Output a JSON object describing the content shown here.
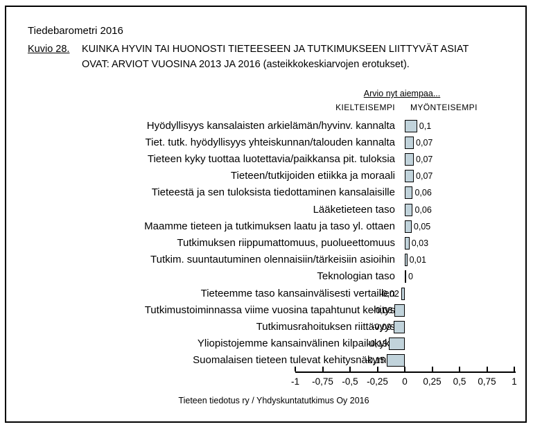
{
  "page": {
    "report_title": "Tiedebarometri 2016",
    "figure_label": "Kuvio 28.",
    "figure_title_line1": "KUINKA HYVIN TAI HUONOSTI TIETEESEEN JA TUTKIMUKSEEN LIITTYVÄT ASIAT",
    "figure_title_line2": "OVAT: ARVIOT VUOSINA 2013 JA 2016 (asteikkokeskiarvojen erotukset).",
    "footer": "Tieteen tiedotus ry / Yhdyskuntatutkimus Oy 2016"
  },
  "chart_data": {
    "type": "bar",
    "orientation": "horizontal",
    "header_note": "Arvio nyt aiempaa...",
    "column_label_negative": "KIELTEISEMPI",
    "column_label_positive": "MYÖNTEISEMPI",
    "categories": [
      "Hyödyllisyys kansalaisten arkielämän/hyvinv. kannalta",
      "Tiet. tutk. hyödyllisyys yhteiskunnan/talouden kannalta",
      "Tieteen kyky tuottaa luotettavia/paikkansa pit. tuloksia",
      "Tieteen/tutkijoiden etiikka ja moraali",
      "Tieteestä ja sen tuloksista tiedottaminen kansalaisille",
      "Lääketieteen taso",
      "Maamme tieteen ja tutkimuksen laatu ja taso yl. ottaen",
      "Tutkimuksen riippumattomuus, puolueettomuus",
      "Tutkim. suuntautuminen olennaisiin/tärkeisiin asioihin",
      "Teknologian taso",
      "Tieteemme taso kansainvälisesti vertaillen",
      "Tutkimustoiminnassa viime vuosina tapahtunut kehitys",
      "Tutkimusrahoituksen riittävyys",
      "Yliopistojemme kansainvälinen kilpailukyky",
      "Suomalaisen tieteen tulevat kehitysnäkymät"
    ],
    "values": [
      0.1,
      0.07,
      0.07,
      0.07,
      0.06,
      0.06,
      0.05,
      0.03,
      0.01,
      0,
      -0.02,
      -0.08,
      -0.09,
      -0.13,
      -0.15
    ],
    "value_labels": [
      "0,1",
      "0,07",
      "0,07",
      "0,07",
      "0,06",
      "0,06",
      "0,05",
      "0,03",
      "0,01",
      "0",
      "-0,02",
      "-0,08",
      "-0,09",
      "-0,13",
      "-0,15"
    ],
    "xlim": [
      -1,
      1
    ],
    "x_ticks": [
      -1,
      -0.75,
      -0.5,
      -0.25,
      0,
      0.25,
      0.5,
      0.75,
      1
    ],
    "x_tick_labels": [
      "-1",
      "-0,75",
      "-0,5",
      "-0,25",
      "0",
      "0,25",
      "0,5",
      "0,75",
      "1"
    ],
    "grid": false,
    "legend": false,
    "bar_fill_color": "#c1d3db",
    "bar_border_color": "#000000"
  }
}
